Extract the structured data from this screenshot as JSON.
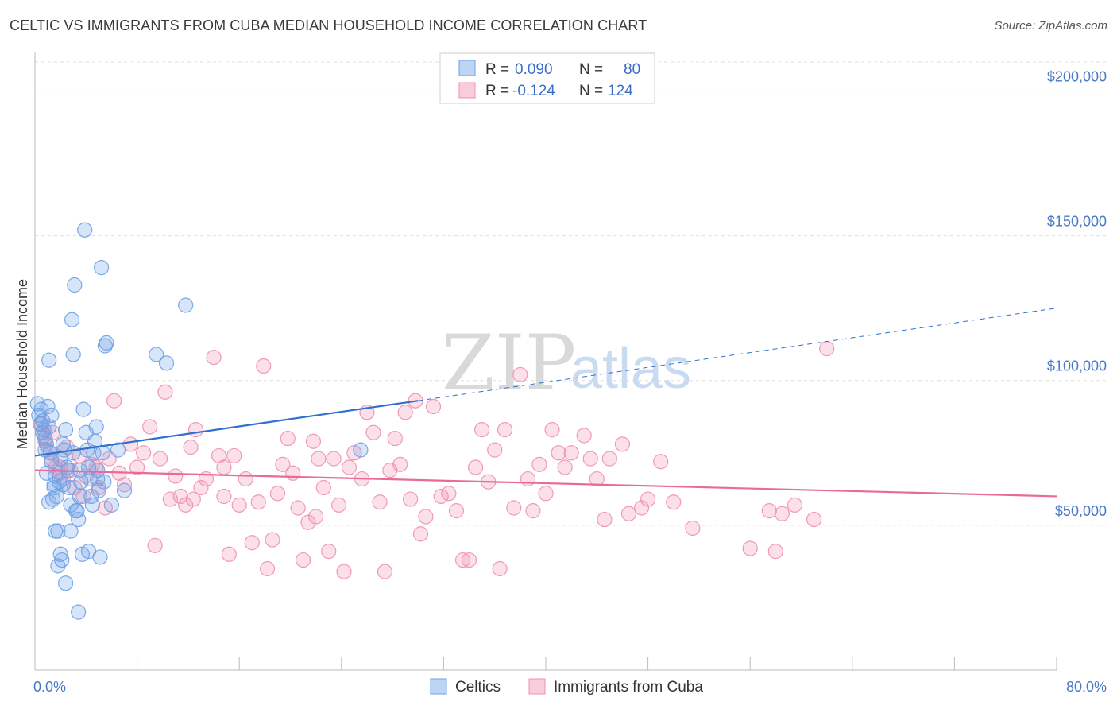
{
  "header": {
    "title": "CELTIC VS IMMIGRANTS FROM CUBA MEDIAN HOUSEHOLD INCOME CORRELATION CHART",
    "source": "Source: ZipAtlas.com"
  },
  "watermark": {
    "zip": "ZIP",
    "atlas": "atlas"
  },
  "legend": {
    "r_label": "R =",
    "n_label": "N =",
    "rows": [
      {
        "r": "0.090",
        "n": "80",
        "color": "#6fa0e6"
      },
      {
        "r": "-0.124",
        "n": "124",
        "color": "#f08fb0"
      }
    ]
  },
  "chart_data": {
    "type": "scatter",
    "title": "CELTIC VS IMMIGRANTS FROM CUBA MEDIAN HOUSEHOLD INCOME CORRELATION CHART",
    "xlabel": "",
    "ylabel": "Median Household Income",
    "xlim": [
      0,
      80
    ],
    "ylim": [
      0,
      210000
    ],
    "x_tick_labels": [
      "0.0%",
      "80.0%"
    ],
    "y_ticks": [
      50000,
      100000,
      150000,
      200000
    ],
    "y_tick_labels": [
      "$50,000",
      "$100,000",
      "$150,000",
      "$200,000"
    ],
    "grid": true,
    "legend_position": "top-center",
    "series": [
      {
        "name": "Celtics",
        "color": "#6fa0e6",
        "line_color": "#2f6fd0",
        "trend": {
          "x0": 0,
          "y0": 74000,
          "x1_solid": 30,
          "y1_solid": 93000,
          "x1_dashed": 80,
          "y1_dashed": 125000
        },
        "points": [
          [
            0.2,
            92000
          ],
          [
            0.3,
            88000
          ],
          [
            0.4,
            85000
          ],
          [
            0.5,
            90000
          ],
          [
            0.6,
            86000
          ],
          [
            0.7,
            83000
          ],
          [
            0.8,
            80000
          ],
          [
            0.9,
            78000
          ],
          [
            1.0,
            91000
          ],
          [
            1.1,
            84000
          ],
          [
            1.2,
            75000
          ],
          [
            1.3,
            72000
          ],
          [
            1.4,
            59000
          ],
          [
            1.5,
            63000
          ],
          [
            1.6,
            48000
          ],
          [
            1.7,
            60000
          ],
          [
            1.8,
            48000
          ],
          [
            1.9,
            65000
          ],
          [
            2.0,
            40000
          ],
          [
            2.1,
            38000
          ],
          [
            2.2,
            78000
          ],
          [
            2.3,
            76000
          ],
          [
            2.4,
            83000
          ],
          [
            2.5,
            70000
          ],
          [
            2.6,
            69000
          ],
          [
            2.7,
            63000
          ],
          [
            2.8,
            48000
          ],
          [
            2.9,
            121000
          ],
          [
            3.0,
            109000
          ],
          [
            3.1,
            133000
          ],
          [
            3.2,
            55000
          ],
          [
            3.3,
            55000
          ],
          [
            3.4,
            52000
          ],
          [
            3.5,
            69000
          ],
          [
            3.6,
            65000
          ],
          [
            3.7,
            40000
          ],
          [
            3.8,
            90000
          ],
          [
            3.9,
            152000
          ],
          [
            4.0,
            82000
          ],
          [
            4.1,
            76000
          ],
          [
            4.2,
            70000
          ],
          [
            4.3,
            66000
          ],
          [
            4.4,
            60000
          ],
          [
            4.5,
            57000
          ],
          [
            4.6,
            75000
          ],
          [
            4.7,
            79000
          ],
          [
            4.8,
            84000
          ],
          [
            4.9,
            69000
          ],
          [
            5.0,
            62000
          ],
          [
            5.1,
            39000
          ],
          [
            5.2,
            139000
          ],
          [
            5.3,
            75000
          ],
          [
            5.4,
            65000
          ],
          [
            5.5,
            112000
          ],
          [
            5.6,
            113000
          ],
          [
            6.0,
            57000
          ],
          [
            6.5,
            76000
          ],
          [
            7.0,
            62000
          ],
          [
            9.5,
            109000
          ],
          [
            10.3,
            106000
          ],
          [
            11.8,
            126000
          ],
          [
            1.1,
            107000
          ],
          [
            0.6,
            82000
          ],
          [
            0.8,
            76000
          ],
          [
            1.5,
            64000
          ],
          [
            2.4,
            30000
          ],
          [
            3.4,
            20000
          ],
          [
            4.2,
            41000
          ],
          [
            2.0,
            73000
          ],
          [
            1.3,
            88000
          ],
          [
            0.9,
            68000
          ],
          [
            1.6,
            67000
          ],
          [
            2.8,
            57000
          ],
          [
            3.5,
            60000
          ],
          [
            4.9,
            66000
          ],
          [
            25.5,
            76000
          ],
          [
            1.8,
            36000
          ],
          [
            2.2,
            64000
          ],
          [
            3.0,
            75000
          ],
          [
            1.1,
            58000
          ]
        ]
      },
      {
        "name": "Immigrants from Cuba",
        "color": "#f08fb0",
        "line_color": "#e8699a",
        "trend": {
          "x0": 0,
          "y0": 69000,
          "x1": 80,
          "y1": 60000
        },
        "points": [
          [
            0.5,
            85000
          ],
          [
            0.8,
            79000
          ],
          [
            1.0,
            76000
          ],
          [
            1.3,
            73000
          ],
          [
            1.6,
            70000
          ],
          [
            1.9,
            68000
          ],
          [
            2.2,
            66000
          ],
          [
            2.5,
            77000
          ],
          [
            2.8,
            69000
          ],
          [
            3.1,
            63000
          ],
          [
            3.5,
            74000
          ],
          [
            4.0,
            67000
          ],
          [
            4.5,
            71000
          ],
          [
            5.0,
            63000
          ],
          [
            5.5,
            56000
          ],
          [
            5.8,
            73000
          ],
          [
            6.2,
            93000
          ],
          [
            6.6,
            68000
          ],
          [
            7.0,
            64000
          ],
          [
            7.5,
            78000
          ],
          [
            8.0,
            70000
          ],
          [
            8.5,
            75000
          ],
          [
            9.0,
            84000
          ],
          [
            9.4,
            43000
          ],
          [
            9.8,
            73000
          ],
          [
            10.2,
            96000
          ],
          [
            10.6,
            59000
          ],
          [
            11.0,
            67000
          ],
          [
            11.4,
            60000
          ],
          [
            11.8,
            57000
          ],
          [
            12.2,
            77000
          ],
          [
            12.6,
            83000
          ],
          [
            13.0,
            63000
          ],
          [
            13.4,
            66000
          ],
          [
            14.0,
            108000
          ],
          [
            14.4,
            74000
          ],
          [
            14.8,
            70000
          ],
          [
            15.2,
            40000
          ],
          [
            15.6,
            74000
          ],
          [
            16.0,
            57000
          ],
          [
            16.5,
            66000
          ],
          [
            17.0,
            44000
          ],
          [
            17.5,
            58000
          ],
          [
            17.9,
            105000
          ],
          [
            18.2,
            35000
          ],
          [
            18.6,
            45000
          ],
          [
            19.0,
            61000
          ],
          [
            19.4,
            71000
          ],
          [
            19.8,
            80000
          ],
          [
            20.2,
            68000
          ],
          [
            20.6,
            56000
          ],
          [
            21.0,
            38000
          ],
          [
            21.4,
            51000
          ],
          [
            21.8,
            79000
          ],
          [
            22.2,
            73000
          ],
          [
            22.6,
            63000
          ],
          [
            23.0,
            41000
          ],
          [
            23.4,
            73000
          ],
          [
            23.8,
            57000
          ],
          [
            24.2,
            34000
          ],
          [
            24.6,
            70000
          ],
          [
            25.0,
            75000
          ],
          [
            25.6,
            66000
          ],
          [
            26.0,
            89000
          ],
          [
            26.5,
            82000
          ],
          [
            27.0,
            58000
          ],
          [
            27.4,
            34000
          ],
          [
            27.8,
            69000
          ],
          [
            28.2,
            80000
          ],
          [
            28.6,
            71000
          ],
          [
            29.0,
            89000
          ],
          [
            29.4,
            59000
          ],
          [
            29.8,
            93000
          ],
          [
            30.2,
            47000
          ],
          [
            30.6,
            53000
          ],
          [
            31.2,
            91000
          ],
          [
            31.8,
            60000
          ],
          [
            32.4,
            61000
          ],
          [
            33.0,
            55000
          ],
          [
            33.5,
            38000
          ],
          [
            34.0,
            38000
          ],
          [
            34.5,
            70000
          ],
          [
            35.0,
            83000
          ],
          [
            35.5,
            65000
          ],
          [
            36.0,
            76000
          ],
          [
            36.4,
            35000
          ],
          [
            36.8,
            83000
          ],
          [
            37.5,
            56000
          ],
          [
            38.0,
            102000
          ],
          [
            38.6,
            66000
          ],
          [
            39.0,
            55000
          ],
          [
            39.5,
            71000
          ],
          [
            40.0,
            61000
          ],
          [
            40.5,
            83000
          ],
          [
            41.0,
            75000
          ],
          [
            41.5,
            70000
          ],
          [
            42.0,
            75000
          ],
          [
            43.0,
            81000
          ],
          [
            43.5,
            73000
          ],
          [
            44.0,
            66000
          ],
          [
            44.6,
            52000
          ],
          [
            45.0,
            73000
          ],
          [
            46.0,
            78000
          ],
          [
            46.5,
            54000
          ],
          [
            47.5,
            56000
          ],
          [
            48.0,
            59000
          ],
          [
            49.0,
            72000
          ],
          [
            50.0,
            58000
          ],
          [
            51.5,
            49000
          ],
          [
            56.0,
            42000
          ],
          [
            57.5,
            55000
          ],
          [
            58.0,
            41000
          ],
          [
            62.0,
            111000
          ],
          [
            58.5,
            54000
          ],
          [
            59.5,
            57000
          ],
          [
            61.0,
            52000
          ],
          [
            0.7,
            81000
          ],
          [
            1.4,
            82000
          ],
          [
            2.0,
            70000
          ],
          [
            3.8,
            60000
          ],
          [
            4.8,
            70000
          ],
          [
            12.4,
            59000
          ],
          [
            14.8,
            60000
          ],
          [
            22.0,
            53000
          ]
        ]
      }
    ]
  },
  "bottom_legend": [
    {
      "label": "Celtics",
      "color": "#6fa0e6"
    },
    {
      "label": "Immigrants from Cuba",
      "color": "#f08fb0"
    }
  ]
}
